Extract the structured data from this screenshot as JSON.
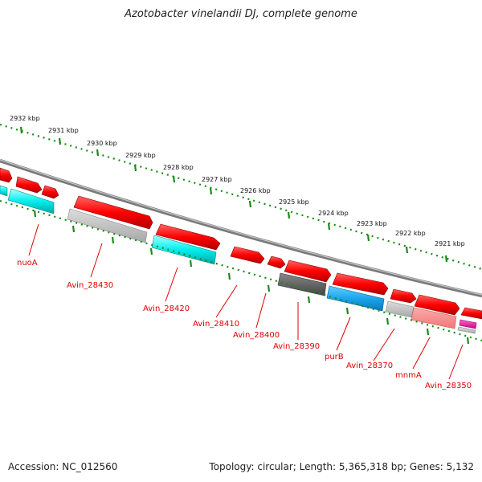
{
  "title": "Azotobacter vinelandii DJ, complete genome",
  "footer": {
    "accession": "Accession: NC_012560",
    "topology": "Topology: circular; Length: 5,365,318 bp; Genes: 5,132"
  },
  "colors": {
    "backbone": "#7a7a7a",
    "tick": "#1a8a1a",
    "label": "#e00000"
  },
  "scale_labels": [
    "2932 kbp",
    "2931 kbp",
    "2930 kbp",
    "2929 kbp",
    "2928 kbp",
    "2927 kbp",
    "2926 kbp",
    "2925 kbp",
    "2924 kbp",
    "2923 kbp",
    "2922 kbp",
    "2921 kbp"
  ],
  "gene_labels": [
    "nuoA",
    "Avin_28430",
    "Avin_28420",
    "Avin_28410",
    "Avin_28400",
    "Avin_28390",
    "purB",
    "Avin_28370",
    "mnmA",
    "Avin_28350"
  ]
}
